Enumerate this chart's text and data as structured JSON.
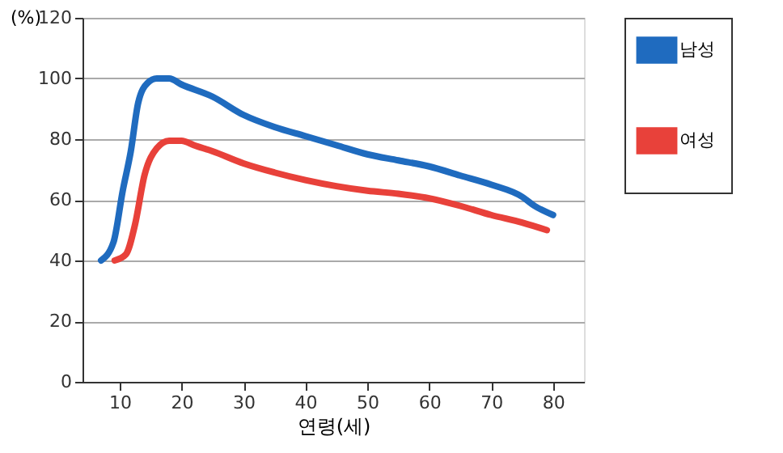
{
  "chart_data": {
    "type": "line",
    "xlabel": "연령(세)",
    "ylabel": "(%)",
    "xlim": [
      4,
      85
    ],
    "xticks": [
      10,
      20,
      30,
      40,
      50,
      60,
      70,
      80
    ],
    "ylim": [
      0,
      120
    ],
    "yticks": [
      0,
      20,
      40,
      60,
      80,
      100,
      120
    ],
    "grid": "y",
    "legend": "right",
    "marker": "none",
    "line_style": "solid",
    "series": [
      {
        "name": "남성",
        "color": "#1f6bbf",
        "x": [
          7,
          9,
          10.5,
          11.8,
          13,
          14.5,
          16,
          18,
          20,
          25,
          30,
          35,
          40,
          45,
          50,
          55,
          60,
          65,
          70,
          75,
          77,
          80
        ],
        "values": [
          40,
          46,
          63,
          76,
          92,
          98.5,
          100,
          100,
          98,
          94,
          88,
          84,
          81,
          78,
          75,
          73,
          71,
          68,
          65,
          61,
          58,
          55
        ]
      },
      {
        "name": "여성",
        "color": "#e8413a",
        "x": [
          9.2,
          11,
          12.5,
          14,
          16,
          18,
          20,
          22,
          25,
          30,
          35,
          40,
          45,
          50,
          55,
          60,
          65,
          70,
          75,
          79
        ],
        "values": [
          40,
          42,
          52,
          68,
          77,
          79.5,
          79.5,
          78,
          76,
          72,
          69,
          66.5,
          64.5,
          63,
          62,
          60.5,
          58,
          55,
          52.5,
          50
        ]
      }
    ]
  }
}
